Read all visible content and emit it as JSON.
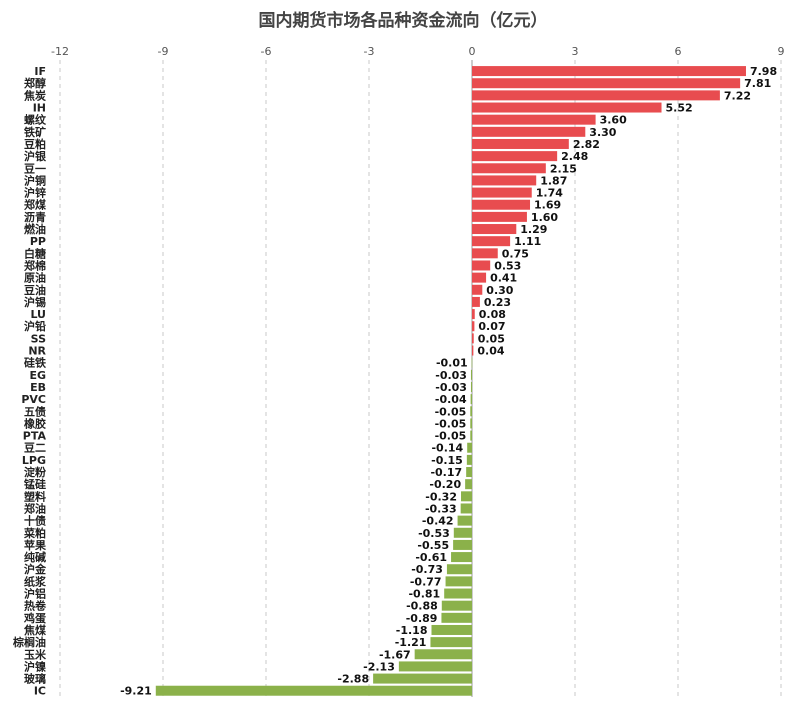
{
  "chart_data": {
    "type": "bar",
    "orientation": "horizontal",
    "title": "国内期货市场各品种资金流向（亿元）",
    "xlim": [
      -12,
      9
    ],
    "xticks": [
      "-12",
      "-9",
      "-6",
      "-3",
      "0",
      "3",
      "6",
      "9"
    ],
    "grid": true,
    "colors": {
      "positive": "#e84c4f",
      "negative": "#8bb14a"
    },
    "categories": [
      "IF",
      "郑醇",
      "焦炭",
      "IH",
      "螺纹",
      "铁矿",
      "豆粕",
      "沪银",
      "豆一",
      "沪铜",
      "沪锌",
      "郑煤",
      "沥青",
      "燃油",
      "PP",
      "白糖",
      "郑棉",
      "原油",
      "豆油",
      "沪锡",
      "LU",
      "沪铅",
      "SS",
      "NR",
      "硅铁",
      "EG",
      "EB",
      "PVC",
      "五债",
      "橡胶",
      "PTA",
      "豆二",
      "LPG",
      "淀粉",
      "锰硅",
      "塑料",
      "郑油",
      "十债",
      "菜粕",
      "苹果",
      "纯碱",
      "沪金",
      "纸浆",
      "沪铝",
      "热卷",
      "鸡蛋",
      "焦煤",
      "棕榈油",
      "玉米",
      "沪镍",
      "玻璃",
      "IC"
    ],
    "values": [
      7.98,
      7.81,
      7.22,
      5.52,
      3.6,
      3.3,
      2.82,
      2.48,
      2.15,
      1.87,
      1.74,
      1.69,
      1.6,
      1.29,
      1.11,
      0.75,
      0.53,
      0.41,
      0.3,
      0.23,
      0.08,
      0.07,
      0.05,
      0.04,
      -0.01,
      -0.03,
      -0.03,
      -0.04,
      -0.05,
      -0.05,
      -0.05,
      -0.14,
      -0.15,
      -0.17,
      -0.2,
      -0.32,
      -0.33,
      -0.42,
      -0.53,
      -0.55,
      -0.61,
      -0.73,
      -0.77,
      -0.81,
      -0.88,
      -0.89,
      -1.18,
      -1.21,
      -1.67,
      -2.13,
      -2.88,
      -9.21
    ],
    "labels": [
      "7.98",
      "7.81",
      "7.22",
      "5.52",
      "3.60",
      "3.30",
      "2.82",
      "2.48",
      "2.15",
      "1.87",
      "1.74",
      "1.69",
      "1.60",
      "1.29",
      "1.11",
      "0.75",
      "0.53",
      "0.41",
      "0.30",
      "0.23",
      "0.08",
      "0.07",
      "0.05",
      "0.04",
      "-0.01",
      "-0.03",
      "-0.03",
      "-0.04",
      "-0.05",
      "-0.05",
      "-0.05",
      "-0.14",
      "-0.15",
      "-0.17",
      "-0.20",
      "-0.32",
      "-0.33",
      "-0.42",
      "-0.53",
      "-0.55",
      "-0.61",
      "-0.73",
      "-0.77",
      "-0.81",
      "-0.88",
      "-0.89",
      "-1.18",
      "-1.21",
      "-1.67",
      "-2.13",
      "-2.88",
      "-9.21"
    ]
  }
}
